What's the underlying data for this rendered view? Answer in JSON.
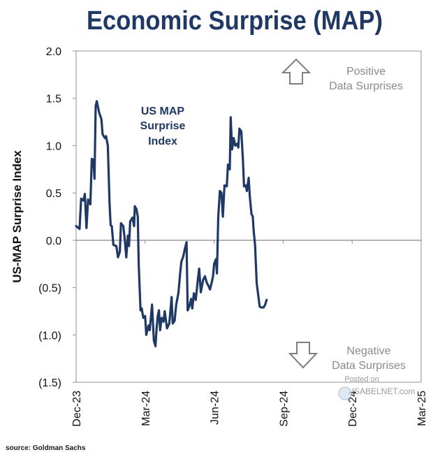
{
  "chart_data": {
    "type": "line",
    "title": "Economic Surprise (MAP)",
    "ylabel": "US-MAP Surprise Index",
    "xlabel": "",
    "ylim": [
      -1.5,
      2.0
    ],
    "y_ticks": [
      {
        "value": 2.0,
        "label": "2.0"
      },
      {
        "value": 1.5,
        "label": "1.5"
      },
      {
        "value": 1.0,
        "label": "1.0"
      },
      {
        "value": 0.5,
        "label": "0.5"
      },
      {
        "value": 0.0,
        "label": "0.0"
      },
      {
        "value": -0.5,
        "label": "(0.5)"
      },
      {
        "value": -1.0,
        "label": "(1.0)"
      },
      {
        "value": -1.5,
        "label": "(1.5)"
      }
    ],
    "x_range_months": [
      0,
      15
    ],
    "x_ticks": [
      {
        "month": 0,
        "label": "Dec-23"
      },
      {
        "month": 3,
        "label": "Mar-24"
      },
      {
        "month": 6,
        "label": "Jun-24"
      },
      {
        "month": 9,
        "label": "Sep-24"
      },
      {
        "month": 12,
        "label": "Dec-24"
      },
      {
        "month": 15,
        "label": "Mar-25"
      }
    ],
    "series": [
      {
        "name": "US MAP Surprise Index",
        "color": "#1f3864",
        "points": [
          [
            0.0,
            0.15
          ],
          [
            0.15,
            0.12
          ],
          [
            0.22,
            0.44
          ],
          [
            0.32,
            0.42
          ],
          [
            0.38,
            0.49
          ],
          [
            0.45,
            0.13
          ],
          [
            0.52,
            0.43
          ],
          [
            0.62,
            0.38
          ],
          [
            0.68,
            0.86
          ],
          [
            0.75,
            0.85
          ],
          [
            0.8,
            0.65
          ],
          [
            0.85,
            1.42
          ],
          [
            0.9,
            1.47
          ],
          [
            1.0,
            1.35
          ],
          [
            1.1,
            1.28
          ],
          [
            1.15,
            1.12
          ],
          [
            1.25,
            1.08
          ],
          [
            1.3,
            1.1
          ],
          [
            1.38,
            1.0
          ],
          [
            1.45,
            0.4
          ],
          [
            1.5,
            0.16
          ],
          [
            1.55,
            0.15
          ],
          [
            1.62,
            -0.05
          ],
          [
            1.75,
            -0.06
          ],
          [
            1.82,
            -0.18
          ],
          [
            1.9,
            -0.12
          ],
          [
            1.95,
            0.18
          ],
          [
            2.05,
            0.15
          ],
          [
            2.12,
            0.0
          ],
          [
            2.18,
            -0.18
          ],
          [
            2.25,
            0.05
          ],
          [
            2.3,
            -0.06
          ],
          [
            2.35,
            0.2
          ],
          [
            2.45,
            0.24
          ],
          [
            2.52,
            0.15
          ],
          [
            2.55,
            0.36
          ],
          [
            2.62,
            0.33
          ],
          [
            2.68,
            0.25
          ],
          [
            2.72,
            -0.25
          ],
          [
            2.8,
            -0.74
          ],
          [
            2.85,
            -0.72
          ],
          [
            2.92,
            -0.82
          ],
          [
            3.0,
            -0.8
          ],
          [
            3.05,
            -1.0
          ],
          [
            3.15,
            -0.9
          ],
          [
            3.2,
            -0.95
          ],
          [
            3.25,
            -0.82
          ],
          [
            3.3,
            -0.68
          ],
          [
            3.38,
            -1.06
          ],
          [
            3.45,
            -1.12
          ],
          [
            3.5,
            -0.92
          ],
          [
            3.55,
            -0.8
          ],
          [
            3.6,
            -0.74
          ],
          [
            3.65,
            -0.95
          ],
          [
            3.72,
            -0.82
          ],
          [
            3.8,
            -0.86
          ],
          [
            3.85,
            -0.75
          ],
          [
            3.95,
            -0.93
          ],
          [
            4.05,
            -0.88
          ],
          [
            4.15,
            -0.6
          ],
          [
            4.2,
            -0.88
          ],
          [
            4.28,
            -0.85
          ],
          [
            4.35,
            -0.68
          ],
          [
            4.45,
            -0.55
          ],
          [
            4.52,
            -0.35
          ],
          [
            4.58,
            -0.22
          ],
          [
            4.65,
            -0.18
          ],
          [
            4.72,
            -0.1
          ],
          [
            4.8,
            -0.02
          ],
          [
            4.85,
            -0.74
          ],
          [
            4.92,
            -0.7
          ],
          [
            5.0,
            -0.62
          ],
          [
            5.05,
            -0.72
          ],
          [
            5.12,
            -0.56
          ],
          [
            5.2,
            -0.63
          ],
          [
            5.3,
            -0.4
          ],
          [
            5.35,
            -0.3
          ],
          [
            5.42,
            -0.55
          ],
          [
            5.52,
            -0.42
          ],
          [
            5.6,
            -0.38
          ],
          [
            5.68,
            -0.45
          ],
          [
            5.75,
            -0.48
          ],
          [
            5.82,
            -0.52
          ],
          [
            5.9,
            -0.44
          ],
          [
            5.95,
            -0.38
          ],
          [
            6.0,
            -0.25
          ],
          [
            6.08,
            -0.2
          ],
          [
            6.12,
            -0.35
          ],
          [
            6.18,
            0.25
          ],
          [
            6.25,
            0.52
          ],
          [
            6.32,
            0.5
          ],
          [
            6.38,
            0.25
          ],
          [
            6.45,
            0.58
          ],
          [
            6.55,
            0.57
          ],
          [
            6.6,
            0.8
          ],
          [
            6.68,
            0.75
          ],
          [
            6.72,
            1.3
          ],
          [
            6.78,
            0.96
          ],
          [
            6.85,
            1.08
          ],
          [
            6.92,
            1.0
          ],
          [
            7.0,
            1.02
          ],
          [
            7.05,
            0.98
          ],
          [
            7.1,
            1.18
          ],
          [
            7.18,
            1.15
          ],
          [
            7.25,
            0.85
          ],
          [
            7.3,
            0.57
          ],
          [
            7.38,
            0.58
          ],
          [
            7.42,
            0.52
          ],
          [
            7.5,
            0.66
          ],
          [
            7.55,
            0.47
          ],
          [
            7.62,
            0.28
          ],
          [
            7.68,
            0.25
          ],
          [
            7.72,
            0.1
          ],
          [
            7.78,
            -0.05
          ],
          [
            7.85,
            -0.45
          ],
          [
            7.9,
            -0.55
          ],
          [
            7.98,
            -0.7
          ],
          [
            8.05,
            -0.71
          ],
          [
            8.15,
            -0.71
          ],
          [
            8.22,
            -0.68
          ],
          [
            8.28,
            -0.63
          ]
        ]
      }
    ],
    "annotations": {
      "series_label": [
        "US MAP",
        "Surprise",
        "Index"
      ],
      "positive": [
        "Positive",
        "Data Surprises"
      ],
      "negative": [
        "Negative",
        "Data Surprises"
      ]
    }
  },
  "watermark": {
    "line1": "Posted on",
    "line2": "ISABELNET.com"
  },
  "source": "source: Goldman Sachs"
}
